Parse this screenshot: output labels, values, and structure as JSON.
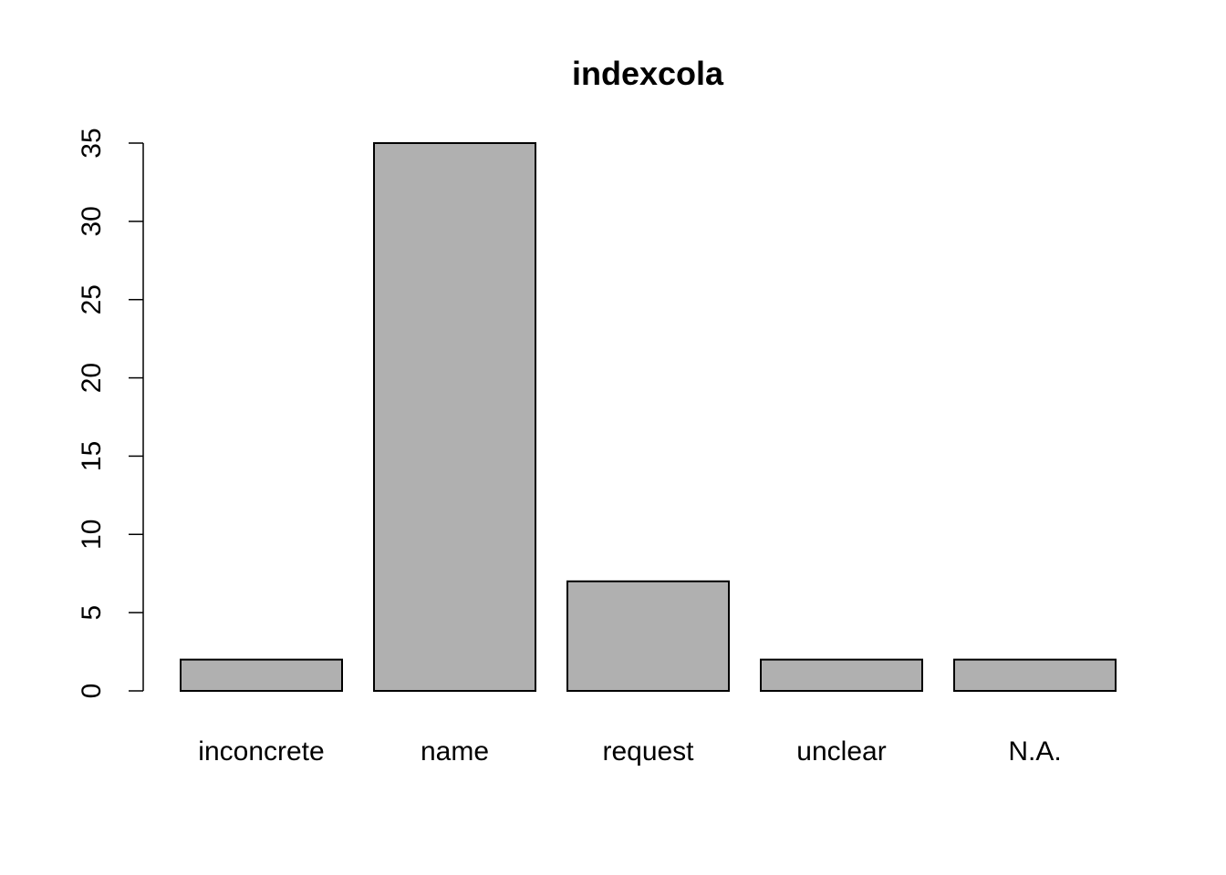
{
  "chart_data": {
    "type": "bar",
    "title": "indexcola",
    "xlabel": "",
    "ylabel": "",
    "categories": [
      "inconcrete",
      "name",
      "request",
      "unclear",
      "N.A."
    ],
    "values": [
      2,
      35,
      7,
      2,
      2
    ],
    "ylim": [
      0,
      35
    ],
    "yticks": [
      0,
      5,
      10,
      15,
      20,
      25,
      30,
      35
    ],
    "ytick_labels": [
      "0",
      "5",
      "10",
      "15",
      "20",
      "25",
      "30",
      "35"
    ],
    "bar_color": "#b0b0b0",
    "grid": false,
    "legend": "none"
  }
}
